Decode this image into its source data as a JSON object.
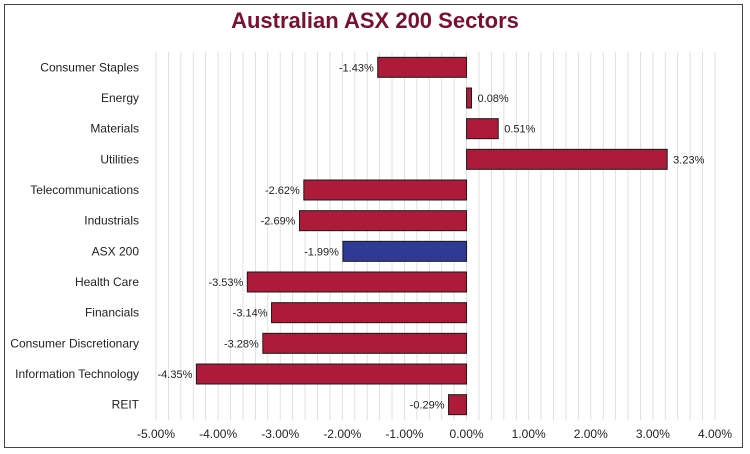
{
  "chart_data": {
    "type": "bar",
    "orientation": "horizontal",
    "title": "Australian ASX 200 Sectors",
    "categories": [
      "Consumer Staples",
      "Energy",
      "Materials",
      "Utilities",
      "Telecommunications",
      "Industrials",
      "ASX 200",
      "Health Care",
      "Financials",
      "Consumer Discretionary",
      "Information Technology",
      "REIT"
    ],
    "values": [
      -1.43,
      0.08,
      0.51,
      3.23,
      -2.62,
      -2.69,
      -1.99,
      -3.53,
      -3.14,
      -3.28,
      -4.35,
      -0.29
    ],
    "value_labels": [
      "-1.43%",
      "0.08%",
      "0.51%",
      "3.23%",
      "-2.62%",
      "-2.69%",
      "-1.99%",
      "-3.53%",
      "-3.14%",
      "-3.28%",
      "-4.35%",
      "-0.29%"
    ],
    "xlim": [
      -5,
      4
    ],
    "xticks": [
      -5,
      -4,
      -3,
      -2,
      -1,
      0,
      1,
      2,
      3,
      4
    ],
    "xtick_labels": [
      "-5.00%",
      "-4.00%",
      "-3.00%",
      "-2.00%",
      "-1.00%",
      "0.00%",
      "1.00%",
      "2.00%",
      "3.00%",
      "4.00%"
    ],
    "grid": true,
    "colors": {
      "bar": "#ad1a3a",
      "highlight_bar": "#2e3a94",
      "highlight_category": "ASX 200",
      "title": "#7a0f2e",
      "grid": "#d9d9d9"
    }
  }
}
